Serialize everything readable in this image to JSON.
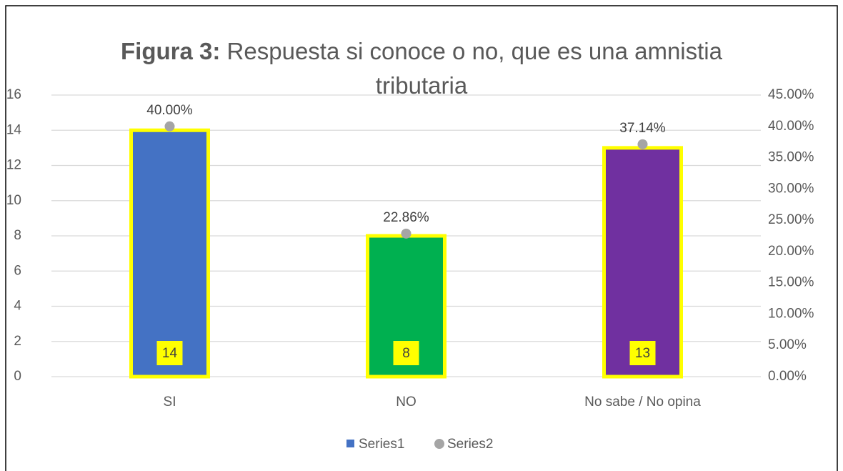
{
  "chart_data": {
    "type": "bar",
    "title_bold": "Figura 3:",
    "title": "Respuesta si conoce o no, que es una amnistia tributaria",
    "categories": [
      "SI",
      "NO",
      "No sabe / No opina"
    ],
    "series": [
      {
        "name": "Series1",
        "type": "bar",
        "color": "#4472c4",
        "point_colors": [
          "#4472c4",
          "#00b050",
          "#7030a0"
        ],
        "outline_color": "#ffff00",
        "values": [
          14,
          8,
          13
        ]
      },
      {
        "name": "Series2",
        "type": "scatter",
        "axis": "y2",
        "color": "#a5a5a5",
        "values": [
          40,
          22.86,
          37.14
        ],
        "value_labels": [
          "40.00%",
          "22.86%",
          "37.14%"
        ]
      }
    ],
    "ylim": [
      0,
      16
    ],
    "yticks": [
      0,
      2,
      4,
      6,
      8,
      10,
      12,
      14,
      16
    ],
    "y2lim": [
      0,
      45
    ],
    "y2ticks": [
      {
        "value": 0,
        "label": "0.00%"
      },
      {
        "value": 5,
        "label": "5.00%"
      },
      {
        "value": 10,
        "label": "10.00%"
      },
      {
        "value": 15,
        "label": "15.00%"
      },
      {
        "value": 20,
        "label": "20.00%"
      },
      {
        "value": 25,
        "label": "25.00%"
      },
      {
        "value": 30,
        "label": "30.00%"
      },
      {
        "value": 35,
        "label": "35.00%"
      },
      {
        "value": 40,
        "label": "40.00%"
      },
      {
        "value": 45,
        "label": "45.00%"
      }
    ],
    "grid": true,
    "legend": "bottom"
  }
}
